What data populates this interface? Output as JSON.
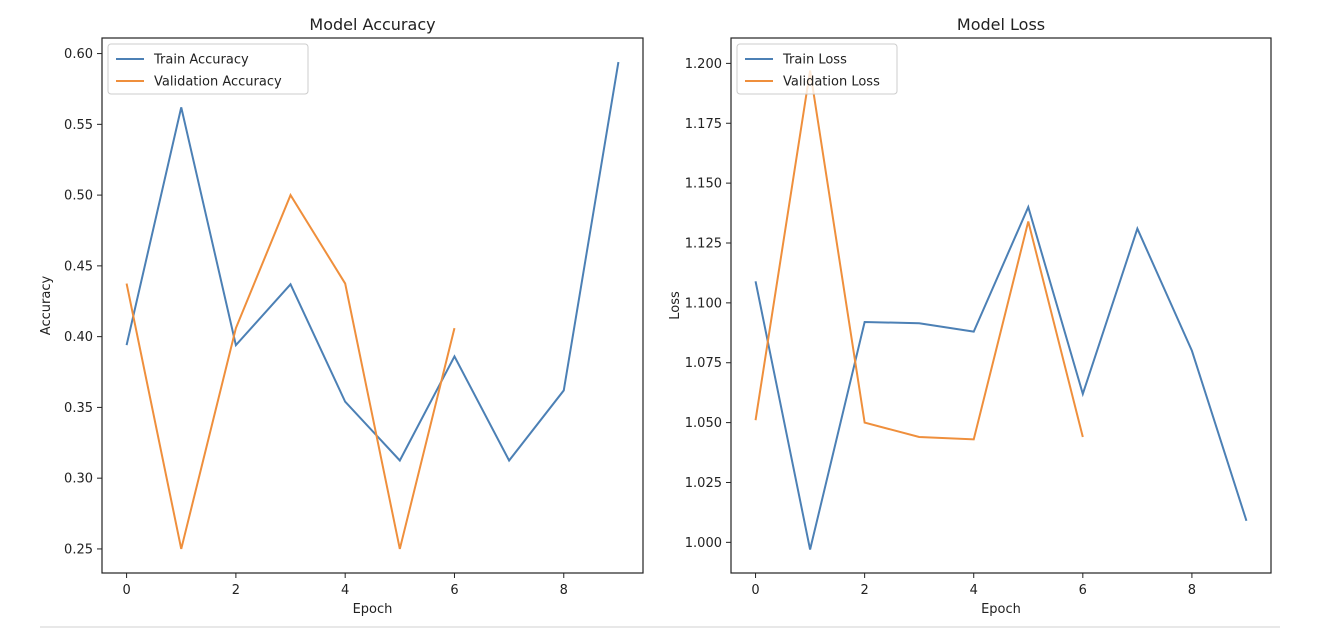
{
  "chart_data": [
    {
      "type": "line",
      "title": "Model Accuracy",
      "xlabel": "Epoch",
      "ylabel": "Accuracy",
      "xlim": [
        -0.45,
        9.45
      ],
      "ylim": [
        0.233,
        0.611
      ],
      "xticks": [
        0,
        2,
        4,
        6,
        8
      ],
      "yticks": [
        0.25,
        0.3,
        0.35,
        0.4,
        0.45,
        0.5,
        0.55,
        0.6
      ],
      "ytick_labels": [
        "0.25",
        "0.30",
        "0.35",
        "0.40",
        "0.45",
        "0.50",
        "0.55",
        "0.60"
      ],
      "legend_position": "upper-left",
      "grid": false,
      "series": [
        {
          "name": "Train Accuracy",
          "color": "#4c80b5",
          "x": [
            0,
            1,
            2,
            3,
            4,
            5,
            6,
            7,
            8,
            9
          ],
          "values": [
            0.394,
            0.562,
            0.394,
            0.437,
            0.354,
            0.3125,
            0.386,
            0.3125,
            0.362,
            0.594
          ]
        },
        {
          "name": "Validation Accuracy",
          "color": "#ef8f3c",
          "x": [
            0,
            1,
            2,
            3,
            4,
            5,
            6
          ],
          "values": [
            0.4375,
            0.25,
            0.406,
            0.5,
            0.4375,
            0.25,
            0.406
          ]
        }
      ]
    },
    {
      "type": "line",
      "title": "Model Loss",
      "xlabel": "Epoch",
      "ylabel": "Loss",
      "xlim": [
        -0.45,
        9.45
      ],
      "ylim": [
        0.9872,
        1.2106
      ],
      "xticks": [
        0,
        2,
        4,
        6,
        8
      ],
      "yticks": [
        1.0,
        1.025,
        1.05,
        1.075,
        1.1,
        1.125,
        1.15,
        1.175,
        1.2
      ],
      "ytick_labels": [
        "1.000",
        "1.025",
        "1.050",
        "1.075",
        "1.100",
        "1.125",
        "1.150",
        "1.175",
        "1.200"
      ],
      "legend_position": "upper-left",
      "grid": false,
      "series": [
        {
          "name": "Train Loss",
          "color": "#4c80b5",
          "x": [
            0,
            1,
            2,
            3,
            4,
            5,
            6,
            7,
            8,
            9
          ],
          "values": [
            1.109,
            0.997,
            1.092,
            1.0915,
            1.088,
            1.14,
            1.062,
            1.131,
            1.08,
            1.009
          ]
        },
        {
          "name": "Validation Loss",
          "color": "#ef8f3c",
          "x": [
            0,
            1,
            2,
            3,
            4,
            5,
            6
          ],
          "values": [
            1.051,
            1.197,
            1.05,
            1.044,
            1.043,
            1.134,
            1.044
          ]
        }
      ]
    }
  ]
}
